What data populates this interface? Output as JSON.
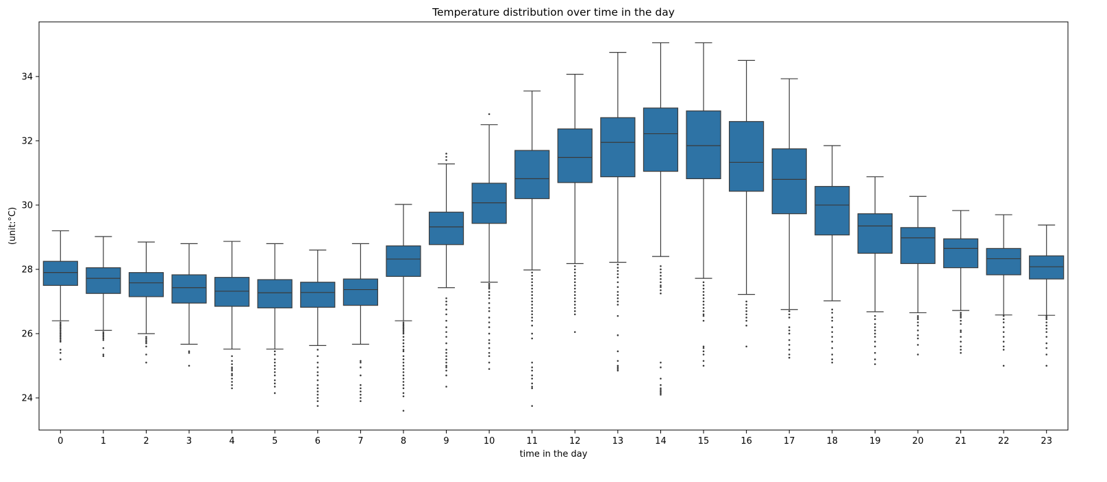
{
  "chart_data": {
    "type": "box",
    "title": "Temperature distribution over time in the day",
    "xlabel": "time in the day",
    "ylabel": "(unit:°C)",
    "ylim": [
      23.0,
      35.7
    ],
    "yticks": [
      24,
      26,
      28,
      30,
      32,
      34
    ],
    "grid": false,
    "legend": "none",
    "box_color": "#2e73a5",
    "line_color": "#3a3a3a",
    "categories": [
      "0",
      "1",
      "2",
      "3",
      "4",
      "5",
      "6",
      "7",
      "8",
      "9",
      "10",
      "11",
      "12",
      "13",
      "14",
      "15",
      "16",
      "17",
      "18",
      "19",
      "20",
      "21",
      "22",
      "23"
    ],
    "boxes": [
      {
        "whisker_low": 26.4,
        "q1": 27.5,
        "median": 27.9,
        "q3": 28.25,
        "whisker_high": 29.2,
        "outliers": [
          26.35,
          26.3,
          26.25,
          26.2,
          26.15,
          26.1,
          26.05,
          26.0,
          25.95,
          25.9,
          25.85,
          25.8,
          25.75,
          25.5,
          25.4,
          25.2
        ]
      },
      {
        "whisker_low": 26.1,
        "q1": 27.25,
        "median": 27.72,
        "q3": 28.05,
        "whisker_high": 29.02,
        "outliers": [
          26.05,
          26.0,
          25.95,
          25.9,
          25.85,
          25.8,
          25.55,
          25.35,
          25.3
        ]
      },
      {
        "whisker_low": 26.0,
        "q1": 27.15,
        "median": 27.58,
        "q3": 27.9,
        "whisker_high": 28.85,
        "outliers": [
          25.9,
          25.85,
          25.8,
          25.75,
          25.7,
          25.6,
          25.35,
          25.1
        ]
      },
      {
        "whisker_low": 25.67,
        "q1": 26.95,
        "median": 27.43,
        "q3": 27.83,
        "whisker_high": 28.8,
        "outliers": [
          25.45,
          25.4,
          25.0
        ]
      },
      {
        "whisker_low": 25.52,
        "q1": 26.85,
        "median": 27.32,
        "q3": 27.75,
        "whisker_high": 28.87,
        "outliers": [
          25.3,
          25.15,
          25.05,
          24.95,
          24.9,
          24.85,
          24.75,
          24.7,
          24.6,
          24.5,
          24.4,
          24.3
        ]
      },
      {
        "whisker_low": 25.52,
        "q1": 26.8,
        "median": 27.27,
        "q3": 27.68,
        "whisker_high": 28.8,
        "outliers": [
          25.45,
          25.35,
          25.2,
          25.1,
          25.0,
          24.9,
          24.8,
          24.7,
          24.55,
          24.45,
          24.35,
          24.15
        ]
      },
      {
        "whisker_low": 25.63,
        "q1": 26.82,
        "median": 27.28,
        "q3": 27.6,
        "whisker_high": 28.6,
        "outliers": [
          25.5,
          25.3,
          25.1,
          24.95,
          24.8,
          24.7,
          24.55,
          24.4,
          24.3,
          24.2,
          24.1,
          24.0,
          23.9,
          23.75
        ]
      },
      {
        "whisker_low": 25.67,
        "q1": 26.88,
        "median": 27.37,
        "q3": 27.7,
        "whisker_high": 28.8,
        "outliers": [
          25.15,
          25.1,
          24.95,
          24.7,
          24.4,
          24.3,
          24.2,
          24.1,
          24.0,
          23.9
        ]
      },
      {
        "whisker_low": 26.4,
        "q1": 27.78,
        "median": 28.32,
        "q3": 28.73,
        "whisker_high": 30.02,
        "outliers": [
          26.35,
          26.3,
          26.25,
          26.2,
          26.15,
          26.1,
          26.05,
          26.0,
          25.9,
          25.8,
          25.7,
          25.6,
          25.5,
          25.45,
          25.3,
          25.2,
          25.1,
          25.0,
          24.9,
          24.8,
          24.7,
          24.6,
          24.5,
          24.4,
          24.3,
          24.15,
          24.05,
          23.6
        ]
      },
      {
        "whisker_low": 27.43,
        "q1": 28.77,
        "median": 29.32,
        "q3": 29.78,
        "whisker_high": 31.28,
        "outliers": [
          31.6,
          31.5,
          31.4,
          27.1,
          27.0,
          26.9,
          26.75,
          26.6,
          26.4,
          26.2,
          26.05,
          25.9,
          25.7,
          25.5,
          25.4,
          25.3,
          25.2,
          25.1,
          25.0,
          24.95,
          24.85,
          24.7,
          24.35
        ]
      },
      {
        "whisker_low": 27.6,
        "q1": 29.43,
        "median": 30.07,
        "q3": 30.68,
        "whisker_high": 32.5,
        "outliers": [
          32.83,
          27.55,
          27.5,
          27.45,
          27.4,
          27.3,
          27.2,
          27.1,
          26.95,
          26.8,
          26.7,
          26.5,
          26.35,
          26.2,
          26.0,
          25.8,
          25.7,
          25.55,
          25.4,
          25.3,
          25.1,
          24.9
        ]
      },
      {
        "whisker_low": 27.98,
        "q1": 30.2,
        "median": 30.82,
        "q3": 31.7,
        "whisker_high": 33.55,
        "outliers": [
          27.9,
          27.8,
          27.7,
          27.6,
          27.5,
          27.4,
          27.3,
          27.2,
          27.1,
          27.0,
          26.9,
          26.8,
          26.7,
          26.6,
          26.5,
          26.4,
          26.25,
          26.0,
          25.85,
          25.1,
          24.95,
          24.85,
          24.7,
          24.6,
          24.45,
          24.35,
          24.3,
          23.75
        ]
      },
      {
        "whisker_low": 28.18,
        "q1": 30.7,
        "median": 31.48,
        "q3": 32.37,
        "whisker_high": 34.07,
        "outliers": [
          28.1,
          28.0,
          27.9,
          27.8,
          27.7,
          27.6,
          27.5,
          27.4,
          27.3,
          27.2,
          27.1,
          27.0,
          26.9,
          26.8,
          26.7,
          26.6,
          26.05
        ]
      },
      {
        "whisker_low": 28.22,
        "q1": 30.88,
        "median": 31.95,
        "q3": 32.72,
        "whisker_high": 34.75,
        "outliers": [
          28.15,
          28.05,
          27.95,
          27.85,
          27.75,
          27.6,
          27.45,
          27.3,
          27.2,
          27.1,
          27.0,
          26.9,
          26.55,
          25.95,
          25.45,
          25.15,
          25.0,
          24.95,
          24.9,
          24.85
        ]
      },
      {
        "whisker_low": 28.4,
        "q1": 31.05,
        "median": 32.22,
        "q3": 33.02,
        "whisker_high": 35.05,
        "outliers": [
          28.1,
          28.0,
          27.9,
          27.8,
          27.7,
          27.6,
          27.5,
          27.45,
          27.35,
          27.25,
          25.1,
          24.95,
          24.6,
          24.4,
          24.3,
          24.25,
          24.2,
          24.15,
          24.1
        ]
      },
      {
        "whisker_low": 27.72,
        "q1": 30.82,
        "median": 31.85,
        "q3": 32.93,
        "whisker_high": 35.05,
        "outliers": [
          27.6,
          27.5,
          27.4,
          27.3,
          27.2,
          27.1,
          27.0,
          26.9,
          26.8,
          26.7,
          26.6,
          26.55,
          26.4,
          25.6,
          25.55,
          25.45,
          25.35,
          25.15,
          25.0
        ]
      },
      {
        "whisker_low": 27.22,
        "q1": 30.43,
        "median": 31.33,
        "q3": 32.6,
        "whisker_high": 34.5,
        "outliers": [
          27.0,
          26.9,
          26.8,
          26.7,
          26.6,
          26.5,
          26.4,
          26.25,
          25.6
        ]
      },
      {
        "whisker_low": 26.75,
        "q1": 29.73,
        "median": 30.8,
        "q3": 31.75,
        "whisker_high": 33.93,
        "outliers": [
          26.7,
          26.6,
          26.5,
          26.2,
          26.1,
          26.0,
          25.8,
          25.65,
          25.5,
          25.35,
          25.25
        ]
      },
      {
        "whisker_low": 27.02,
        "q1": 29.07,
        "median": 30.0,
        "q3": 30.58,
        "whisker_high": 31.85,
        "outliers": [
          26.75,
          26.65,
          26.5,
          26.4,
          26.2,
          26.05,
          25.9,
          25.75,
          25.55,
          25.35,
          25.2,
          25.1
        ]
      },
      {
        "whisker_low": 26.68,
        "q1": 28.5,
        "median": 29.35,
        "q3": 29.73,
        "whisker_high": 30.88,
        "outliers": [
          26.55,
          26.45,
          26.3,
          26.2,
          26.1,
          26.0,
          25.9,
          25.75,
          25.6,
          25.4,
          25.2,
          25.05
        ]
      },
      {
        "whisker_low": 26.65,
        "q1": 28.18,
        "median": 28.98,
        "q3": 29.3,
        "whisker_high": 30.27,
        "outliers": [
          26.55,
          26.5,
          26.45,
          26.35,
          26.25,
          26.1,
          25.95,
          25.85,
          25.65,
          25.35
        ]
      },
      {
        "whisker_low": 26.72,
        "q1": 28.05,
        "median": 28.65,
        "q3": 28.95,
        "whisker_high": 29.83,
        "outliers": [
          26.65,
          26.6,
          26.55,
          26.5,
          26.4,
          26.3,
          26.1,
          26.05,
          25.9,
          25.75,
          25.6,
          25.5,
          25.4
        ]
      },
      {
        "whisker_low": 26.58,
        "q1": 27.83,
        "median": 28.33,
        "q3": 28.65,
        "whisker_high": 29.7,
        "outliers": [
          26.55,
          26.45,
          26.35,
          26.2,
          26.05,
          25.9,
          25.75,
          25.6,
          25.5,
          25.0
        ]
      },
      {
        "whisker_low": 26.57,
        "q1": 27.7,
        "median": 28.08,
        "q3": 28.42,
        "whisker_high": 29.38,
        "outliers": [
          26.55,
          26.5,
          26.45,
          26.35,
          26.25,
          26.15,
          26.05,
          25.9,
          25.7,
          25.55,
          25.35,
          25.0
        ]
      }
    ]
  }
}
